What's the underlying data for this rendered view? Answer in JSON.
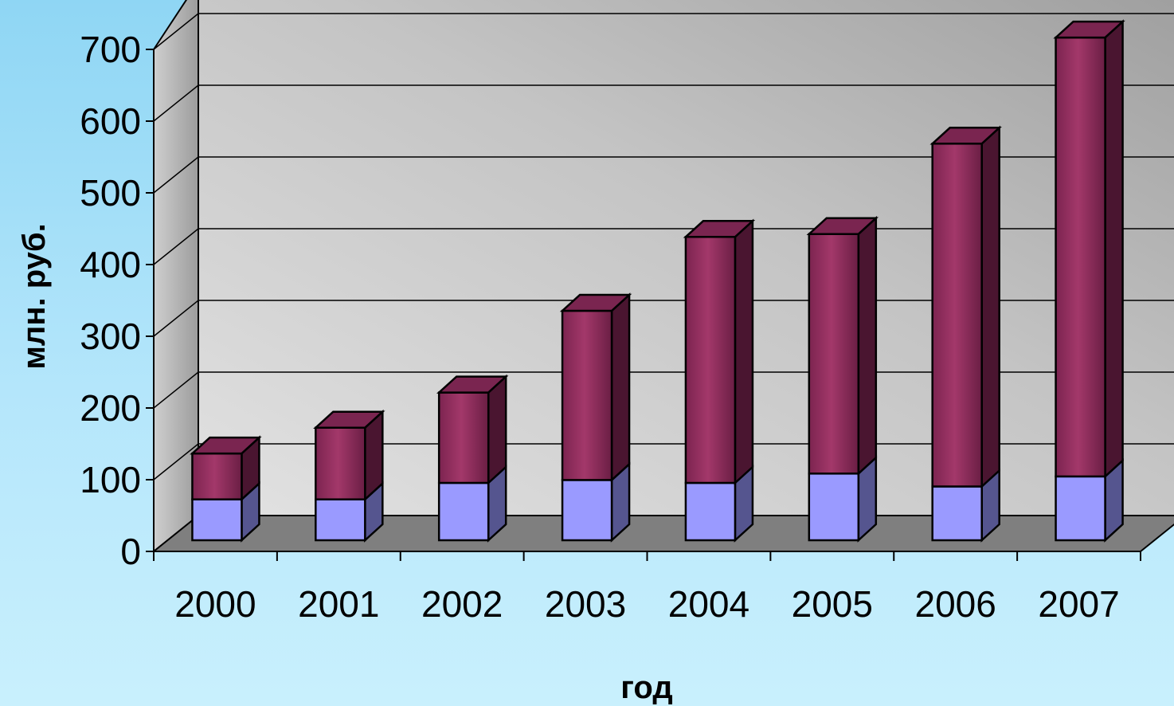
{
  "chart_data": {
    "type": "bar",
    "stacked": true,
    "style": "3d",
    "categories": [
      "2000",
      "2001",
      "2002",
      "2003",
      "2004",
      "2005",
      "2006",
      "2007"
    ],
    "series": [
      {
        "values": [
          57,
          57,
          80,
          84,
          80,
          93,
          75,
          89
        ]
      },
      {
        "values": [
          64,
          100,
          126,
          236,
          343,
          334,
          478,
          612
        ]
      }
    ],
    "yticks": [
      "0",
      "100",
      "200",
      "300",
      "400",
      "500",
      "600",
      "700"
    ],
    "ylim": [
      0,
      700
    ],
    "xlabel": "год",
    "ylabel": "млн. руб.",
    "grid": true,
    "legend": "none",
    "colors": {
      "series_bottom_front": "#9a9aff",
      "series_bottom_side": "#55558f",
      "series_top_front": "#96305f",
      "series_top_side": "#4a1530",
      "series_top_cap": "#7a2550",
      "wall": "#c2c2c2",
      "floor": "#7f7f7f"
    }
  }
}
